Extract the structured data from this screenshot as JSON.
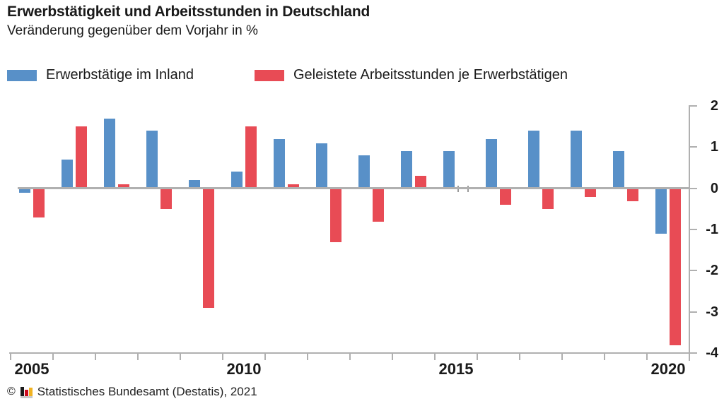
{
  "header": {
    "title": "Erwerbstätigkeit und Arbeitsstunden in Deutschland",
    "subtitle": "Veränderung gegenüber dem Vorjahr in %"
  },
  "legend": {
    "items": [
      {
        "label": "Erwerbstätige im Inland",
        "color": "#5890c8"
      },
      {
        "label": "Geleistete Arbeitsstunden je Erwerbstätigen",
        "color": "#e84b55"
      }
    ]
  },
  "chart_data": {
    "type": "bar",
    "title": "Erwerbstätigkeit und Arbeitsstunden in Deutschland",
    "subtitle": "Veränderung gegenüber dem Vorjahr in %",
    "categories": [
      2005,
      2006,
      2007,
      2008,
      2009,
      2010,
      2011,
      2012,
      2013,
      2014,
      2015,
      2016,
      2017,
      2018,
      2019,
      2020
    ],
    "series": [
      {
        "name": "Erwerbstätige im Inland",
        "color": "#5890c8",
        "values": [
          -0.1,
          0.7,
          1.7,
          1.4,
          0.2,
          0.4,
          1.2,
          1.1,
          0.8,
          0.9,
          0.9,
          1.2,
          1.4,
          1.4,
          0.9,
          -1.1
        ]
      },
      {
        "name": "Geleistete Arbeitsstunden je Erwerbstätigen",
        "color": "#e84b55",
        "values": [
          -0.7,
          1.5,
          0.1,
          -0.5,
          -2.9,
          1.5,
          0.1,
          -1.3,
          -0.8,
          0.3,
          0.0,
          -0.4,
          -0.5,
          -0.2,
          -0.3,
          -3.8
        ]
      }
    ],
    "ylim": [
      -4,
      2
    ],
    "y_ticks": [
      2,
      1,
      0,
      -1,
      -2,
      -3,
      -4
    ],
    "x_labeled_years": [
      "2005",
      "2010",
      "2015",
      "2020"
    ],
    "grid": false,
    "legend_position": "top",
    "axis_color": "#b0b0b0",
    "zero_value_marker_years": [
      2015
    ]
  },
  "footer": {
    "copyright": "©",
    "source": "Statistisches Bundesamt (Destatis), 2021",
    "logo_colors": {
      "bar1": "#1a1a1a",
      "bar2": "#cc0a1e",
      "bar3": "#f0b323",
      "base": "#c9c9c9"
    }
  }
}
